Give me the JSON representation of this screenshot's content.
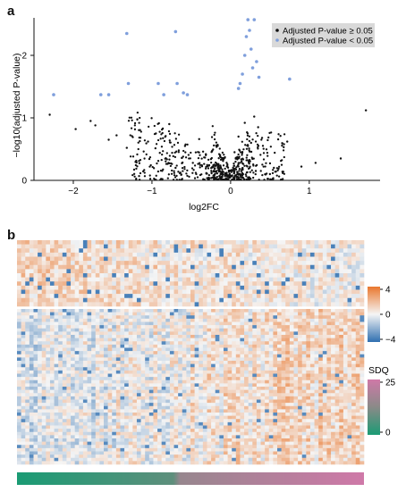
{
  "panel_a": {
    "label": "a"
  },
  "panel_b": {
    "label": "b"
  },
  "chart_data": [
    {
      "type": "scatter",
      "title": "",
      "xlabel": "log2FC",
      "ylabel": "−log10(adjusted P-value)",
      "xlim": [
        -2.5,
        1.9
      ],
      "ylim": [
        0,
        2.6
      ],
      "xticks": [
        "−2",
        "−1",
        "0",
        "1"
      ],
      "xtick_values": [
        -2,
        -1,
        0,
        1
      ],
      "yticks": [
        "0",
        "1",
        "2"
      ],
      "ytick_values": [
        0,
        1,
        2
      ],
      "legend": {
        "position": "top-right",
        "entries": [
          {
            "label": "Adjusted P-value ≥ 0.05",
            "color": "#111111"
          },
          {
            "label": "Adjusted P-value < 0.05",
            "color": "#7f9fdc"
          }
        ]
      },
      "series": [
        {
          "name": "Adjusted P-value ≥ 0.05",
          "color": "#111111",
          "x": [
            -2.3,
            -1.97,
            -1.78,
            -1.72,
            -1.55,
            -1.45,
            -1.32,
            -1.05,
            -0.9,
            -0.78,
            -0.62,
            -0.58,
            -0.48,
            -0.35,
            -0.22,
            -0.15,
            -0.05,
            0.05,
            0.1,
            0.18,
            0.22,
            0.26,
            0.3,
            0.35,
            0.4,
            0.55,
            0.72,
            0.9,
            1.08,
            1.4,
            1.72,
            -1.2,
            -0.95,
            -0.7,
            -0.4,
            -0.25,
            0.02,
            0.14,
            0.32,
            0.5
          ],
          "y": [
            1.05,
            0.82,
            0.95,
            0.88,
            0.65,
            0.72,
            0.52,
            0.62,
            0.44,
            0.9,
            0.36,
            0.55,
            0.28,
            0.46,
            0.22,
            0.18,
            0.12,
            0.45,
            0.7,
            0.92,
            0.55,
            0.6,
            1.02,
            0.85,
            0.68,
            0.2,
            0.62,
            0.22,
            0.28,
            0.35,
            1.12,
            0.3,
            0.75,
            0.2,
            0.66,
            0.34,
            0.08,
            0.3,
            0.15,
            0.1
          ]
        },
        {
          "name": "Adjusted P-value < 0.05",
          "color": "#7f9fdc",
          "x": [
            -2.25,
            -1.65,
            -1.55,
            -1.32,
            -1.3,
            -0.92,
            -0.85,
            -0.7,
            -0.68,
            -0.6,
            -0.55,
            0.1,
            0.12,
            0.15,
            0.18,
            0.2,
            0.22,
            0.24,
            0.26,
            0.28,
            0.3,
            0.33,
            0.36,
            0.75,
            0.8
          ],
          "y": [
            1.37,
            1.37,
            1.37,
            2.35,
            1.55,
            1.55,
            1.37,
            2.38,
            1.55,
            1.4,
            1.37,
            1.47,
            1.55,
            1.7,
            2.0,
            2.3,
            2.57,
            2.4,
            2.1,
            1.8,
            2.57,
            1.9,
            1.65,
            1.62,
            2.28
          ]
        }
      ]
    },
    {
      "type": "heatmap",
      "title": "",
      "colorbar": {
        "label": "",
        "ticks": [
          "4",
          "0",
          "−4"
        ],
        "range": [
          -4,
          4
        ],
        "colors": [
          "#2f6fb0",
          "#f5f5f5",
          "#e9772e"
        ]
      },
      "sdq_bar": {
        "label": "SDQ",
        "ticks": [
          "25",
          "0"
        ],
        "range": [
          0,
          25
        ],
        "colors": [
          "#1a9b74",
          "#cf79a8"
        ]
      },
      "rows_top_block": 16,
      "rows_bottom_block": 48,
      "columns": 84,
      "values": "dense z-scores in [−4, 4]; top block predominantly positive, bottom block mixed with rising positive values toward right"
    }
  ]
}
